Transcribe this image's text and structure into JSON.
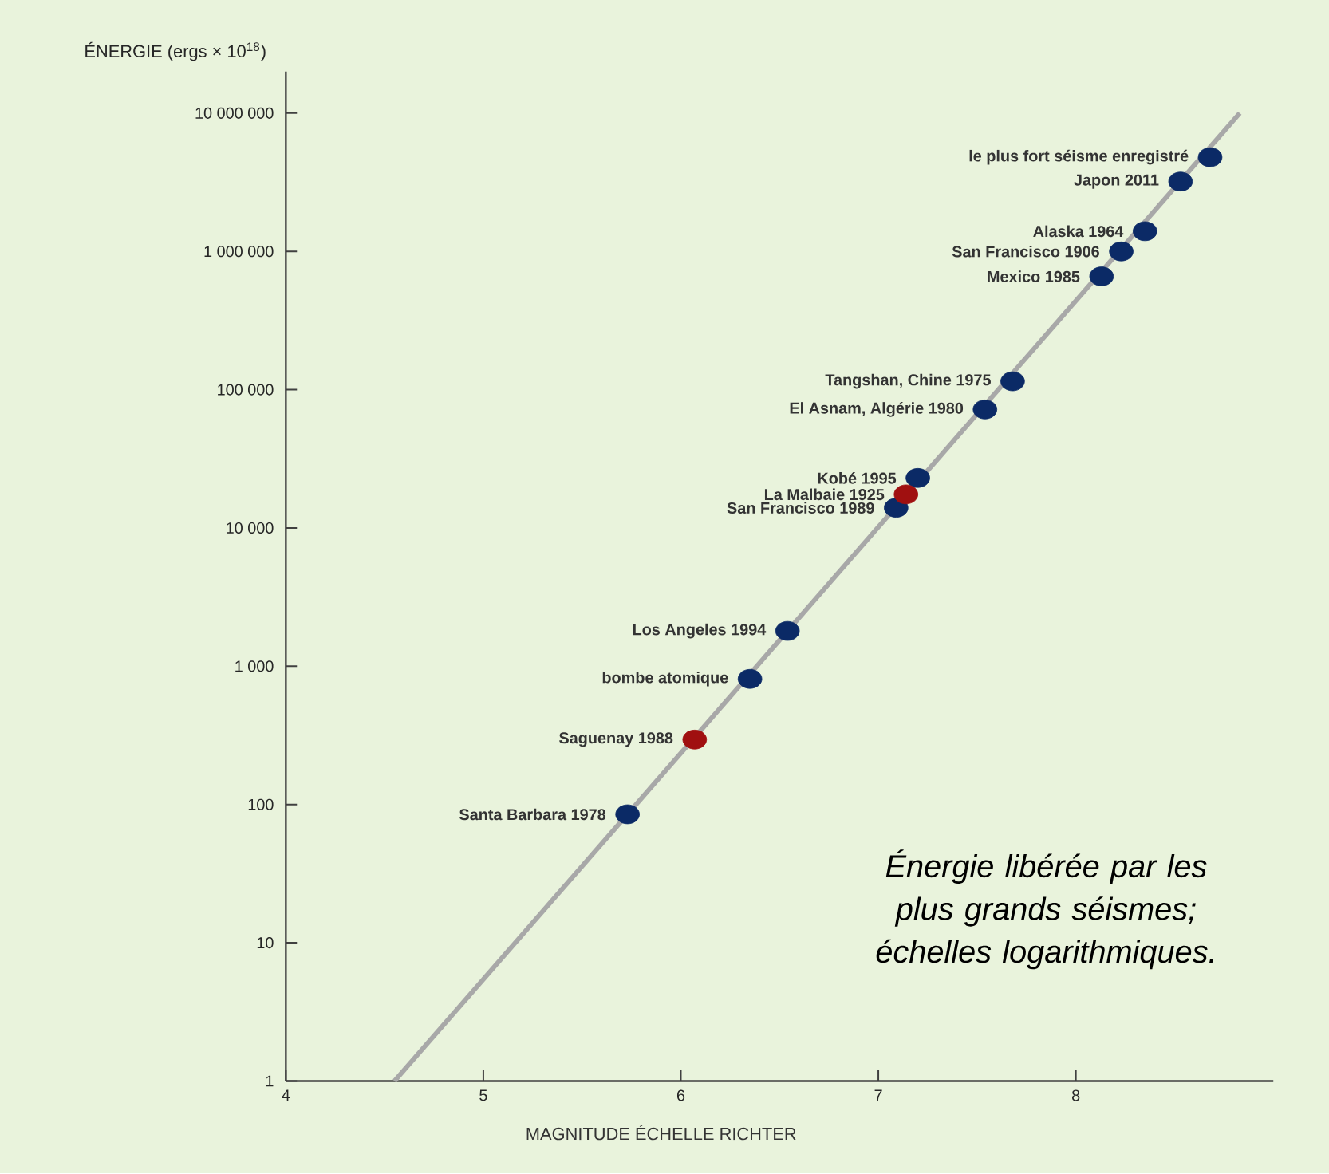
{
  "chart_data": {
    "type": "scatter",
    "ylabel": "ÉNERGIE (ergs × 10$^{18}$)",
    "xlabel": "MAGNITUDE    ÉCHELLE RICHTER",
    "log": "y",
    "marker": "circle",
    "xlim": [
      4,
      9
    ],
    "ylim": [
      1,
      20000000
    ],
    "xticks": [
      4,
      5,
      6,
      7,
      8
    ],
    "yticks": [
      1,
      10,
      100,
      {
        "value": 1000,
        "label": "1 000"
      },
      {
        "value": 10000,
        "label": "10 000"
      },
      {
        "value": 100000,
        "label": "100 000"
      },
      {
        "value": 1000000,
        "label": "1 000 000"
      },
      {
        "value": 10000000,
        "label": "10 000 000"
      }
    ],
    "series": [
      {
        "type": "line",
        "marker": "none",
        "color": "#a8a8a8",
        "x": [
          4.55,
          8.83
        ],
        "values": [
          1,
          10000000
        ]
      },
      {
        "color": "#0b2a66",
        "x": [
          8.68,
          8.53,
          8.35,
          8.23,
          8.13,
          7.68,
          7.54,
          7.2,
          7.09,
          6.54,
          6.35,
          5.73
        ],
        "values": [
          4800000,
          3200000,
          1400000,
          1000000,
          660000,
          115000,
          72000,
          23000,
          14000,
          1800,
          810,
          85
        ]
      },
      {
        "color": "#a01010",
        "x": [
          7.14,
          6.07
        ],
        "values": [
          17500,
          295
        ]
      }
    ],
    "annotations": [
      {
        "text": "le plus fort séisme enregistré",
        "x": 8.68,
        "y": 4800000
      },
      {
        "text": "Japon 2011",
        "x": 8.53,
        "y": 3200000
      },
      {
        "text": "Alaska 1964",
        "x": 8.35,
        "y": 1400000
      },
      {
        "text": "San Francisco 1906",
        "x": 8.23,
        "y": 1000000
      },
      {
        "text": "Mexico 1985",
        "x": 8.13,
        "y": 660000
      },
      {
        "text": "Tangshan, Chine 1975",
        "x": 7.68,
        "y": 115000
      },
      {
        "text": "El Asnam, Algérie 1980",
        "x": 7.54,
        "y": 72000
      },
      {
        "text": "Kobé 1995",
        "x": 7.2,
        "y": 23000
      },
      {
        "text": "La Malbaie 1925",
        "x": 7.14,
        "y": 17500
      },
      {
        "text": "San Francisco 1989",
        "x": 7.09,
        "y": 14000
      },
      {
        "text": "Los Angeles 1994",
        "x": 6.54,
        "y": 1800
      },
      {
        "text": "bombe atomique",
        "x": 6.35,
        "y": 810
      },
      {
        "text": "Saguenay 1988",
        "x": 6.07,
        "y": 295
      },
      {
        "text": "Santa Barbara 1978",
        "x": 5.73,
        "y": 85
      },
      "Énergie libérée par les plus grands séismes; échelles logarithmiques."
    ]
  }
}
